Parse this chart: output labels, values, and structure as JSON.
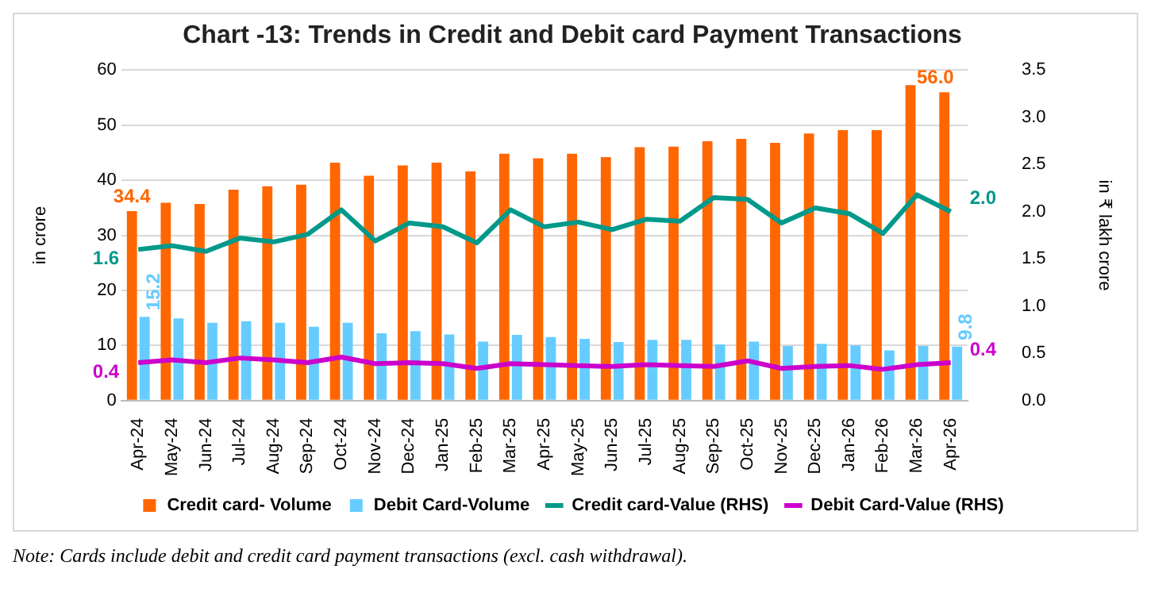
{
  "chart_data": {
    "type": "bar",
    "title": "Chart -13: Trends in Credit and Debit card Payment Transactions",
    "ylabel": "in crore",
    "y2label": "in ₹ lakh crore",
    "categories": [
      "Apr-24",
      "May-24",
      "Jun-24",
      "Jul-24",
      "Aug-24",
      "Sep-24",
      "Oct-24",
      "Nov-24",
      "Dec-24",
      "Jan-25",
      "Feb-25",
      "Mar-25",
      "Apr-25",
      "May-25",
      "Jun-25",
      "Jul-25",
      "Aug-25",
      "Sep-25",
      "Oct-25",
      "Nov-25",
      "Dec-25",
      "Jan-26",
      "Feb-26",
      "Mar-26",
      "Apr-26"
    ],
    "series": [
      {
        "name": "Credit card- Volume",
        "color": "#ff6600",
        "values": [
          34.4,
          35.9,
          35.7,
          38.3,
          38.9,
          39.2,
          43.2,
          40.8,
          42.7,
          43.2,
          41.6,
          44.8,
          44.0,
          44.8,
          44.2,
          46.0,
          46.1,
          47.1,
          47.5,
          46.8,
          48.5,
          49.1,
          49.1,
          57.3,
          56.0
        ],
        "value_labels": [
          "34.4",
          null,
          null,
          null,
          null,
          null,
          null,
          null,
          null,
          null,
          null,
          null,
          null,
          null,
          null,
          null,
          null,
          null,
          null,
          null,
          null,
          null,
          null,
          null,
          "56.0"
        ]
      },
      {
        "name": "Debit Card-Volume",
        "color": "#66ccff",
        "values": [
          15.2,
          14.9,
          14.1,
          14.4,
          14.1,
          13.4,
          14.1,
          12.2,
          12.6,
          12.0,
          10.7,
          11.9,
          11.5,
          11.2,
          10.6,
          11.0,
          11.0,
          10.2,
          10.7,
          9.9,
          10.3,
          10.0,
          9.1,
          9.9,
          9.8
        ],
        "value_labels": [
          "15.2",
          null,
          null,
          null,
          null,
          null,
          null,
          null,
          null,
          null,
          null,
          null,
          null,
          null,
          null,
          null,
          null,
          null,
          null,
          null,
          null,
          null,
          null,
          null,
          "9.8"
        ]
      },
      {
        "name": "Credit card-Value (RHS)",
        "type": "line",
        "axis": "y2",
        "color": "#00998a",
        "values": [
          1.6,
          1.64,
          1.58,
          1.72,
          1.68,
          1.76,
          2.02,
          1.69,
          1.88,
          1.84,
          1.67,
          2.02,
          1.84,
          1.89,
          1.81,
          1.92,
          1.9,
          2.15,
          2.13,
          1.88,
          2.04,
          1.98,
          1.77,
          2.18,
          2.0
        ],
        "value_labels": [
          "1.6",
          null,
          null,
          null,
          null,
          null,
          null,
          null,
          null,
          null,
          null,
          null,
          null,
          null,
          null,
          null,
          null,
          null,
          null,
          null,
          null,
          null,
          null,
          null,
          "2.0"
        ]
      },
      {
        "name": "Debit Card-Value (RHS)",
        "type": "line",
        "axis": "y2",
        "color": "#cc00cc",
        "values": [
          0.4,
          0.43,
          0.4,
          0.45,
          0.43,
          0.4,
          0.46,
          0.39,
          0.4,
          0.39,
          0.34,
          0.39,
          0.38,
          0.37,
          0.36,
          0.38,
          0.37,
          0.36,
          0.42,
          0.34,
          0.36,
          0.37,
          0.33,
          0.38,
          0.4
        ],
        "value_labels": [
          "0.4",
          null,
          null,
          null,
          null,
          null,
          null,
          null,
          null,
          null,
          null,
          null,
          null,
          null,
          null,
          null,
          null,
          null,
          null,
          null,
          null,
          null,
          null,
          null,
          "0.4"
        ]
      }
    ],
    "ylim": [
      0,
      60
    ],
    "yticks": [
      0,
      10,
      20,
      30,
      40,
      50,
      60
    ],
    "y2lim": [
      0,
      3.5
    ],
    "y2ticks": [
      {
        "value": 0,
        "label": "0.0"
      },
      {
        "value": 0.5,
        "label": "0.5"
      },
      {
        "value": 1,
        "label": "1.0"
      },
      {
        "value": 1.5,
        "label": "1.5"
      },
      {
        "value": 2,
        "label": "2.0"
      },
      {
        "value": 2.5,
        "label": "2.5"
      },
      {
        "value": 3,
        "label": "3.0"
      },
      {
        "value": 3.5,
        "label": "3.5"
      }
    ],
    "grid": "y",
    "legend": "bottom",
    "marker": "none",
    "line_style": "solid",
    "annotations": [
      "Note: Cards include debit and credit card payment transactions (excl. cash withdrawal)."
    ]
  }
}
